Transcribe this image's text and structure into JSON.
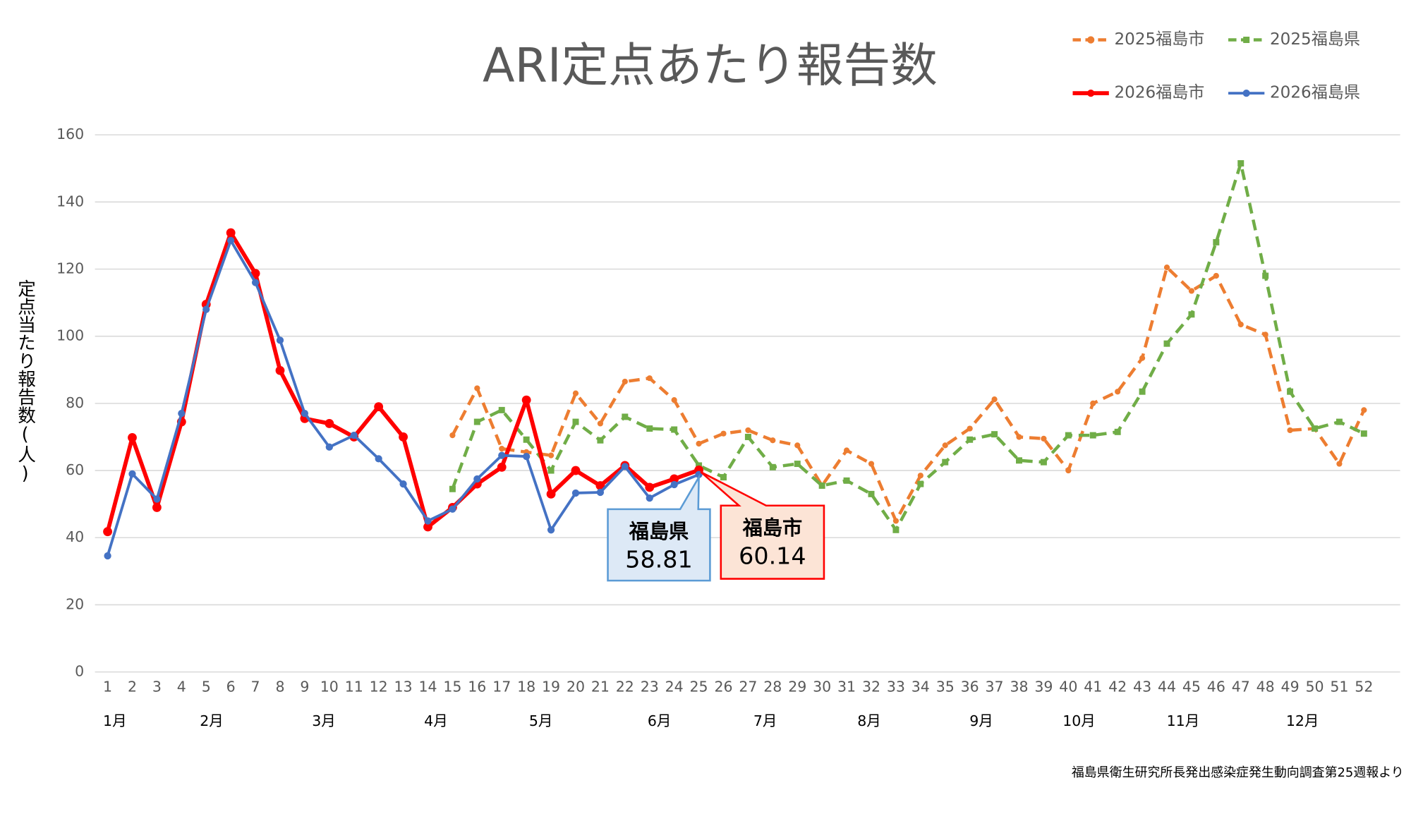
{
  "chart_data": {
    "type": "line",
    "title": "ARI定点あたり報告数",
    "y_label": "定点当たり報告数(人)",
    "source": "福島県衛生研究所長発出感染症発生動向調査第25週報より",
    "x": [
      1,
      2,
      3,
      4,
      5,
      6,
      7,
      8,
      9,
      10,
      11,
      12,
      13,
      14,
      15,
      16,
      17,
      18,
      19,
      20,
      21,
      22,
      23,
      24,
      25,
      26,
      27,
      28,
      29,
      30,
      31,
      32,
      33,
      34,
      35,
      36,
      37,
      38,
      39,
      40,
      41,
      42,
      43,
      44,
      45,
      46,
      47,
      48,
      49,
      50,
      51,
      52
    ],
    "months": [
      "1月",
      "2月",
      "3月",
      "4月",
      "5月",
      "6月",
      "7月",
      "8月",
      "9月",
      "10月",
      "11月",
      "12月"
    ],
    "ylim": [
      0,
      160
    ],
    "yticks": [
      0,
      20,
      40,
      60,
      80,
      100,
      120,
      140,
      160
    ],
    "grid": true,
    "series": [
      {
        "name": "2025福島市",
        "color": "#ed7d31",
        "style": "dashed",
        "marker": "circle",
        "values": [
          null,
          null,
          null,
          null,
          null,
          null,
          null,
          null,
          null,
          null,
          null,
          null,
          null,
          null,
          70.5,
          84.5,
          66.5,
          65.5,
          64.5,
          83,
          74,
          86.5,
          87.5,
          81,
          68,
          71,
          72,
          69,
          67.5,
          55.5,
          66,
          62,
          45,
          58.5,
          67.5,
          72.5,
          81.2,
          70,
          69.5,
          60,
          80,
          83.5,
          93.5,
          120.5,
          113.5,
          118,
          103.5,
          100.5,
          72,
          72.5,
          62,
          78
        ]
      },
      {
        "name": "2025福島県",
        "color": "#70ad47",
        "style": "dashed",
        "marker": "square",
        "values": [
          null,
          null,
          null,
          null,
          null,
          null,
          null,
          null,
          null,
          null,
          null,
          null,
          null,
          null,
          54.5,
          74.5,
          78,
          69.2,
          60,
          74.5,
          69,
          76,
          72.5,
          72.2,
          61.5,
          58,
          70,
          61,
          62,
          55.5,
          57,
          53,
          42.3,
          56,
          62.5,
          69.2,
          70.8,
          63,
          62.5,
          70.5,
          70.5,
          71.5,
          83.5,
          97.8,
          106.5,
          128,
          151.5,
          118,
          83.5,
          72.5,
          74.5,
          71
        ]
      },
      {
        "name": "2026福島市",
        "color": "#ff0000",
        "style": "solid",
        "marker": "circle",
        "values": [
          41.8,
          69.8,
          49,
          74.5,
          109.5,
          130.8,
          118.7,
          89.8,
          75.5,
          74,
          70,
          79,
          70,
          43.2,
          49,
          56,
          61,
          81,
          53,
          60,
          55.5,
          61.5,
          55,
          57.5,
          60.14,
          null,
          null,
          null,
          null,
          null,
          null,
          null,
          null,
          null,
          null,
          null,
          null,
          null,
          null,
          null,
          null,
          null,
          null,
          null,
          null,
          null,
          null,
          null,
          null,
          null,
          null,
          null
        ]
      },
      {
        "name": "2026福島県",
        "color": "#4472c4",
        "style": "solid",
        "marker": "circle",
        "values": [
          34.6,
          59,
          51.5,
          77,
          108,
          128.5,
          116,
          98.8,
          77,
          67,
          70.5,
          63.5,
          56,
          45,
          48.5,
          57.5,
          64.5,
          64.2,
          42.3,
          53.3,
          53.5,
          61.2,
          51.8,
          55.8,
          58.81,
          null,
          null,
          null,
          null,
          null,
          null,
          null,
          null,
          null,
          null,
          null,
          null,
          null,
          null,
          null,
          null,
          null,
          null,
          null,
          null,
          null,
          null,
          null,
          null,
          null,
          null,
          null
        ]
      }
    ],
    "callouts": [
      {
        "label": "福島県",
        "value": "58.81",
        "series": 3
      },
      {
        "label": "福島市",
        "value": "60.14",
        "series": 2
      }
    ]
  }
}
